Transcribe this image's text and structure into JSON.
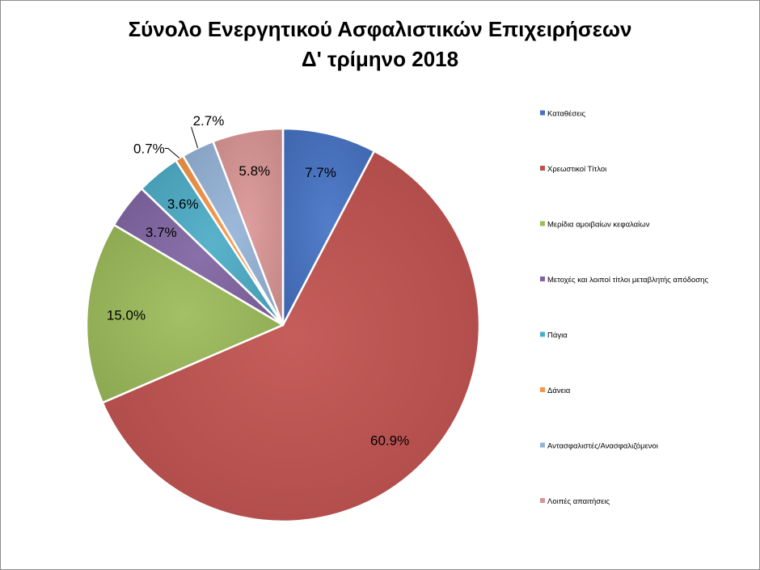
{
  "chart_data": {
    "type": "pie",
    "title_line1": "Σύνολο Ενεργητικού Ασφαλιστικών Επιχειρήσεων",
    "title_line2": "Δ' τρίμηνο 2018",
    "legend_position": "right",
    "slices": [
      {
        "name": "Καταθέσεις",
        "value": 7.7,
        "label": "7.7%",
        "color": "#4472C4"
      },
      {
        "name": "Χρεωστικοί Τίτλοι",
        "value": 60.9,
        "label": "60.9%",
        "color": "#C0504D"
      },
      {
        "name": "Μερίδια αμοιβαίων κεφαλαίων",
        "value": 15.0,
        "label": "15.0%",
        "color": "#9BBB59"
      },
      {
        "name": "Μετοχές και λοιποί τίτλοι μεταβλητής απόδοσης",
        "value": 3.7,
        "label": "3.7%",
        "color": "#8064A2"
      },
      {
        "name": "Πάγια",
        "value": 3.6,
        "label": "3.6%",
        "color": "#4BACC6"
      },
      {
        "name": "Δάνεια",
        "value": 0.7,
        "label": "0.7%",
        "color": "#F79646"
      },
      {
        "name": "Αντασφαλιστές/Ανασφαλιζόμενοι",
        "value": 2.7,
        "label": "2.7%",
        "color": "#95B3D7"
      },
      {
        "name": "Λοιπές απαιτήσεις",
        "value": 5.8,
        "label": "5.8%",
        "color": "#DA9694"
      }
    ]
  }
}
